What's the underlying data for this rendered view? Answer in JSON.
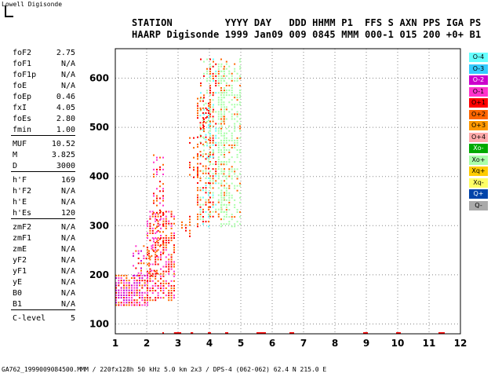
{
  "logo": "Lowell Digisonde",
  "header": {
    "line1": "STATION         YYYY DAY   DDD HHMM P1  FFS S AXN PPS IGA PS",
    "line2": "HAARP Digisonde 1999 Jan09 009 0845 MMM 000-1 015 200 +0+ B1"
  },
  "params": [
    {
      "name": "foF2",
      "value": "2.75"
    },
    {
      "name": "foF1",
      "value": "N/A"
    },
    {
      "name": "foF1p",
      "value": "N/A"
    },
    {
      "name": "foE",
      "value": "N/A"
    },
    {
      "name": "foEp",
      "value": "0.46"
    },
    {
      "name": "fxI",
      "value": "4.05"
    },
    {
      "name": "foEs",
      "value": "2.80"
    },
    {
      "name": "fmin",
      "value": "1.00"
    },
    {
      "name": "MUF",
      "value": "10.52"
    },
    {
      "name": "M",
      "value": "3.825"
    },
    {
      "name": "D",
      "value": "3000"
    },
    {
      "name": "h'F",
      "value": "169"
    },
    {
      "name": "h'F2",
      "value": "N/A"
    },
    {
      "name": "h'E",
      "value": "N/A"
    },
    {
      "name": "h'Es",
      "value": "120"
    },
    {
      "name": "zmF2",
      "value": "N/A"
    },
    {
      "name": "zmF1",
      "value": "N/A"
    },
    {
      "name": "zmE",
      "value": "N/A"
    },
    {
      "name": "yF2",
      "value": "N/A"
    },
    {
      "name": "yF1",
      "value": "N/A"
    },
    {
      "name": "yE",
      "value": "N/A"
    },
    {
      "name": "B0",
      "value": "N/A"
    },
    {
      "name": "B1",
      "value": "N/A"
    },
    {
      "name": "C-level",
      "value": "5"
    }
  ],
  "legend": [
    {
      "label": "O-4",
      "color": "#66ffff"
    },
    {
      "label": "O-3",
      "color": "#33ccff"
    },
    {
      "label": "O-2",
      "color": "#cc00cc"
    },
    {
      "label": "O-1",
      "color": "#ff33cc"
    },
    {
      "label": "O+1",
      "color": "#ff0000"
    },
    {
      "label": "O+2",
      "color": "#ff6600"
    },
    {
      "label": "O+3",
      "color": "#ff9900"
    },
    {
      "label": "O+4",
      "color": "#ffaaaa"
    },
    {
      "label": "Xo-",
      "color": "#00aa00"
    },
    {
      "label": "Xo+",
      "color": "#aaffaa"
    },
    {
      "label": "Xq+",
      "color": "#ffcc00"
    },
    {
      "label": "Xq-",
      "color": "#ffff66"
    },
    {
      "label": "Q+",
      "color": "#0044aa"
    },
    {
      "label": "Q-",
      "color": "#aaaaaa"
    }
  ],
  "footer": "GA762_1999009084500.MMM / 220fx128h 50 kHz 5.0 km 2x3 / DPS-4 (062-062) 62.4 N 215.0 E",
  "chart_data": {
    "type": "scatter",
    "xlim": [
      1,
      12
    ],
    "ylim": [
      80,
      660
    ],
    "xticks": [
      1,
      2,
      3,
      4,
      5,
      6,
      7,
      8,
      9,
      10,
      11,
      12
    ],
    "yticks": [
      100,
      200,
      300,
      400,
      500,
      600
    ],
    "grid": true,
    "clusters": [
      {
        "x0": 1.0,
        "x1": 2.0,
        "y0": 140,
        "y1": 200,
        "density": 0.9
      },
      {
        "x0": 2.0,
        "x1": 2.85,
        "y0": 150,
        "y1": 330,
        "density": 0.6
      },
      {
        "x0": 1.55,
        "x1": 2.3,
        "y0": 200,
        "y1": 260,
        "density": 0.35
      },
      {
        "x0": 2.2,
        "x1": 2.5,
        "y0": 245,
        "y1": 445,
        "density": 0.4
      },
      {
        "x0": 3.1,
        "x1": 3.35,
        "y0": 280,
        "y1": 320,
        "density": 0.7
      },
      {
        "x0": 3.6,
        "x1": 3.95,
        "y0": 300,
        "y1": 560,
        "density": 0.6
      },
      {
        "x0": 3.7,
        "x1": 4.1,
        "y0": 440,
        "y1": 640,
        "density": 0.35
      },
      {
        "x0": 4.0,
        "x1": 4.45,
        "y0": 320,
        "y1": 630,
        "density": 0.6
      },
      {
        "x0": 4.35,
        "x1": 4.95,
        "y0": 300,
        "y1": 640,
        "density": 0.45
      },
      {
        "x0": 3.35,
        "x1": 3.6,
        "y0": 380,
        "y1": 480,
        "density": 0.35
      }
    ],
    "baseline_marks": [
      {
        "x0": 2.5,
        "x1": 2.52
      },
      {
        "x0": 2.87,
        "x1": 3.1
      },
      {
        "x0": 3.4,
        "x1": 3.48
      },
      {
        "x0": 3.95,
        "x1": 4.05
      },
      {
        "x0": 4.5,
        "x1": 4.6
      },
      {
        "x0": 5.5,
        "x1": 5.8
      },
      {
        "x0": 6.55,
        "x1": 6.7
      },
      {
        "x0": 8.9,
        "x1": 9.05
      },
      {
        "x0": 9.95,
        "x1": 10.1
      },
      {
        "x0": 11.3,
        "x1": 11.5
      }
    ]
  }
}
